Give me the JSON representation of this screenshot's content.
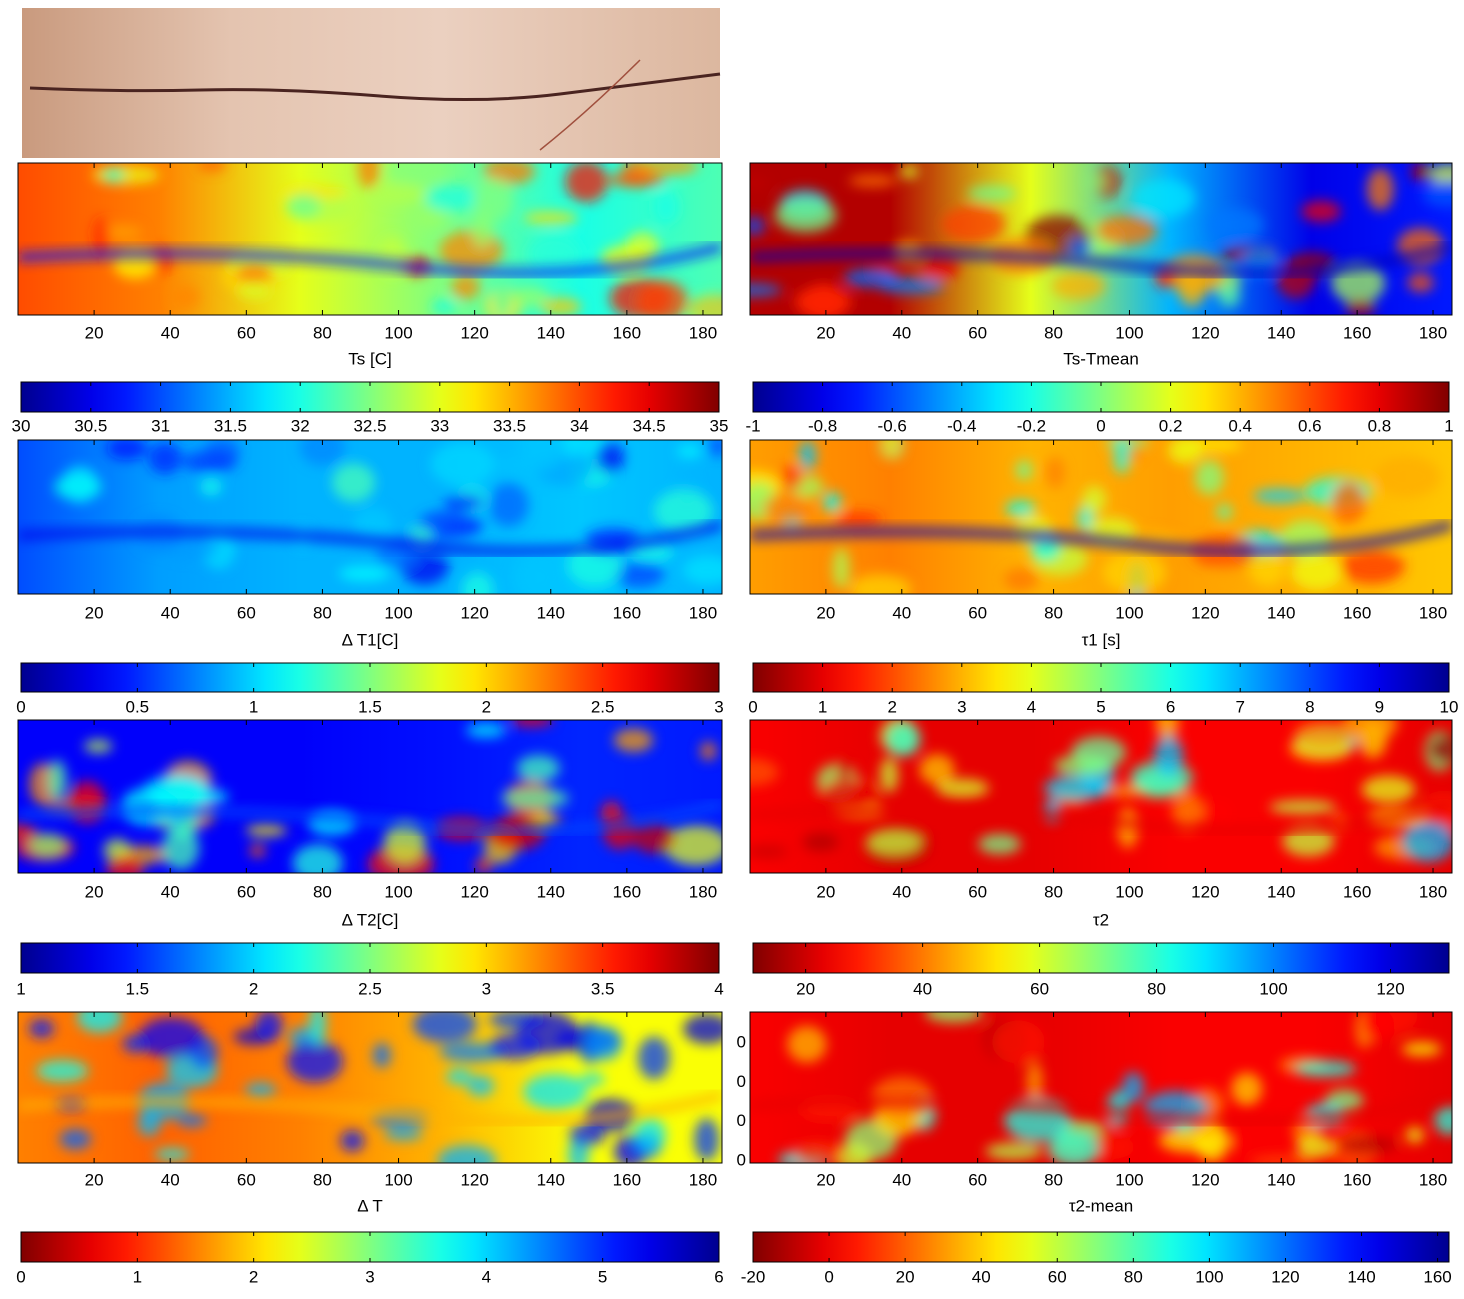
{
  "chart_data": [
    {
      "type": "heatmap",
      "xlabel": "Ts [C]",
      "xlim": [
        0,
        185
      ],
      "xticks": [
        20,
        40,
        60,
        80,
        100,
        120,
        140,
        160,
        180
      ],
      "colorbar": {
        "colormap": "jet",
        "lim": [
          30,
          35
        ],
        "ticks": [
          30,
          30.5,
          31,
          31.5,
          32,
          32.5,
          33,
          33.5,
          34,
          34.5,
          35
        ]
      }
    },
    {
      "type": "heatmap",
      "xlabel": "Ts-Tmean",
      "xlim": [
        0,
        185
      ],
      "xticks": [
        20,
        40,
        60,
        80,
        100,
        120,
        140,
        160,
        180
      ],
      "colorbar": {
        "colormap": "jet",
        "lim": [
          -1,
          1
        ],
        "ticks": [
          -1,
          -0.8,
          -0.6,
          -0.4,
          -0.2,
          0,
          0.2,
          0.4,
          0.6,
          0.8,
          1
        ]
      }
    },
    {
      "type": "heatmap",
      "xlabel": "Δ T1[C]",
      "xlim": [
        0,
        185
      ],
      "xticks": [
        20,
        40,
        60,
        80,
        100,
        120,
        140,
        160,
        180
      ],
      "colorbar": {
        "colormap": "jet",
        "lim": [
          0,
          3
        ],
        "ticks": [
          0,
          0.5,
          1,
          1.5,
          2,
          2.5,
          3
        ]
      }
    },
    {
      "type": "heatmap",
      "xlabel": "τ1 [s]",
      "xlim": [
        0,
        185
      ],
      "xticks": [
        20,
        40,
        60,
        80,
        100,
        120,
        140,
        160,
        180
      ],
      "colorbar": {
        "colormap": "jet_r",
        "lim": [
          0,
          10
        ],
        "ticks": [
          0,
          1,
          2,
          3,
          4,
          5,
          6,
          7,
          8,
          9,
          10
        ]
      }
    },
    {
      "type": "heatmap",
      "xlabel": "Δ T2[C]",
      "xlim": [
        0,
        185
      ],
      "xticks": [
        20,
        40,
        60,
        80,
        100,
        120,
        140,
        160,
        180
      ],
      "colorbar": {
        "colormap": "jet",
        "lim": [
          1,
          4
        ],
        "ticks": [
          1,
          1.5,
          2,
          2.5,
          3,
          3.5,
          4
        ]
      }
    },
    {
      "type": "heatmap",
      "xlabel": "τ2",
      "xlim": [
        0,
        185
      ],
      "xticks": [
        20,
        40,
        60,
        80,
        100,
        120,
        140,
        160,
        180
      ],
      "colorbar": {
        "colormap": "jet_r",
        "lim": [
          11,
          130
        ],
        "ticks": [
          20,
          40,
          60,
          80,
          100,
          120
        ]
      }
    },
    {
      "type": "heatmap",
      "xlabel": "Δ T",
      "xlim": [
        0,
        185
      ],
      "xticks": [
        20,
        40,
        60,
        80,
        100,
        120,
        140,
        160,
        180
      ],
      "colorbar": {
        "colormap": "jet_r",
        "lim": [
          0,
          6
        ],
        "ticks": [
          0,
          1,
          2,
          3,
          4,
          5,
          6
        ]
      }
    },
    {
      "type": "heatmap",
      "xlabel": "τ2-mean",
      "xlim": [
        0,
        185
      ],
      "xticks": [
        20,
        40,
        60,
        80,
        100,
        120,
        140,
        160,
        180
      ],
      "ytick_labels": [
        "0",
        "0",
        "0",
        "0"
      ],
      "colorbar": {
        "colormap": "jet_r",
        "lim": [
          -20,
          163
        ],
        "ticks": [
          -20,
          0,
          20,
          40,
          60,
          80,
          100,
          120,
          140,
          160
        ]
      }
    }
  ]
}
